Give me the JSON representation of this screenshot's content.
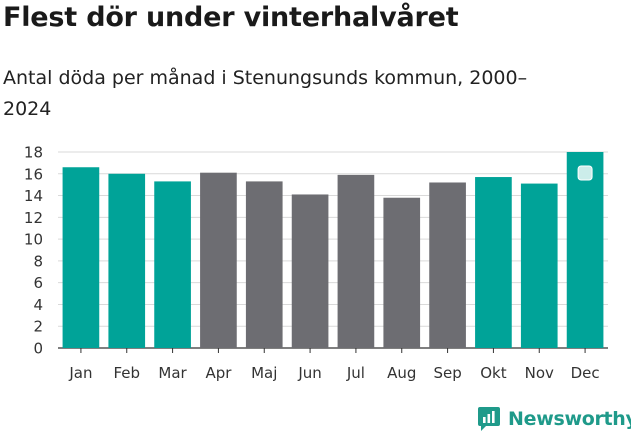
{
  "title": "Flest dör under vinterhalvåret",
  "subtitle": "Antal döda per månad i Stenungsunds kommun, 2000–2024",
  "brand": {
    "name": "Newsworthy",
    "color": "#1f9a8a"
  },
  "colors": {
    "winter": "#00a398",
    "summer": "#6d6d72",
    "grid": "#d9d9d9",
    "axis": "#333333"
  },
  "chart_data": {
    "type": "bar",
    "title": "Flest dör under vinterhalvåret",
    "subtitle": "Antal döda per månad i Stenungsunds kommun, 2000–2024",
    "xlabel": "",
    "ylabel": "",
    "categories": [
      "Jan",
      "Feb",
      "Mar",
      "Apr",
      "Maj",
      "Jun",
      "Jul",
      "Aug",
      "Sep",
      "Okt",
      "Nov",
      "Dec"
    ],
    "values": [
      16.6,
      16.0,
      15.3,
      16.1,
      15.3,
      14.1,
      15.9,
      13.8,
      15.2,
      15.7,
      15.1,
      18.0
    ],
    "groups": [
      "winter",
      "winter",
      "winter",
      "summer",
      "summer",
      "summer",
      "summer",
      "summer",
      "summer",
      "winter",
      "winter",
      "winter"
    ],
    "ylim": [
      0,
      18
    ],
    "yticks": [
      0,
      2,
      4,
      6,
      8,
      10,
      12,
      14,
      16,
      18
    ],
    "grid": true,
    "highlight_index": 11
  }
}
